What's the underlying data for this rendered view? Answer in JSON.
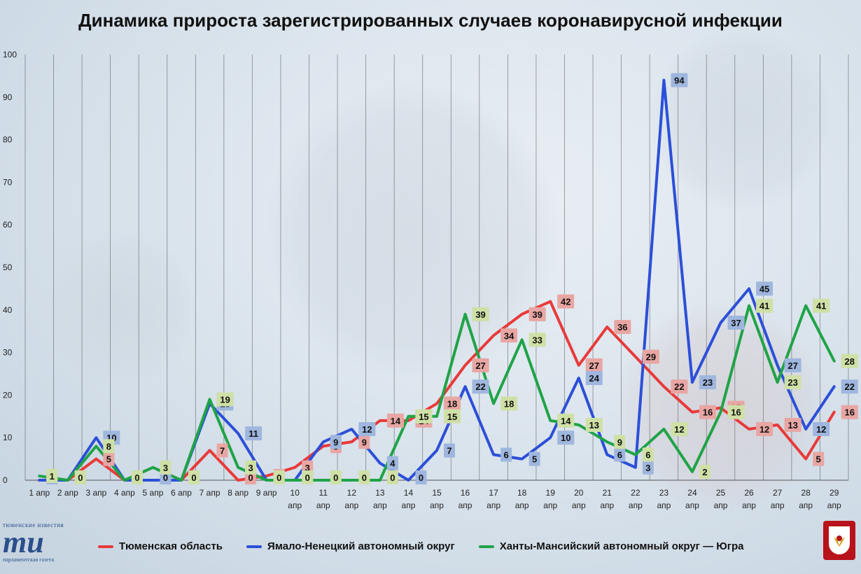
{
  "title": "Динамика прироста зарегистрированных случаев коронавирусной инфекции",
  "logo": {
    "top": "тюменские известия",
    "mark": "ти",
    "bottom": "парламентская газета"
  },
  "chart_data": {
    "type": "line",
    "ylim": [
      0,
      100
    ],
    "yticks": [
      0,
      10,
      20,
      30,
      40,
      50,
      60,
      70,
      80,
      90,
      100
    ],
    "grid": "vertical",
    "legend": "bottom",
    "categories": [
      [
        "1 апр"
      ],
      [
        "2 апр"
      ],
      [
        "3 апр"
      ],
      [
        "4 апр"
      ],
      [
        "5 апр"
      ],
      [
        "6 апр"
      ],
      [
        "7 апр"
      ],
      [
        "8 апр"
      ],
      [
        "9 апр"
      ],
      [
        "10",
        "апр"
      ],
      [
        "11",
        "апр"
      ],
      [
        "12",
        "апр"
      ],
      [
        "13",
        "апр"
      ],
      [
        "14",
        "апр"
      ],
      [
        "15",
        "апр"
      ],
      [
        "16",
        "апр"
      ],
      [
        "17",
        "апр"
      ],
      [
        "18",
        "апр"
      ],
      [
        "19",
        "апр"
      ],
      [
        "20",
        "апр"
      ],
      [
        "21",
        "апр"
      ],
      [
        "22",
        "апр"
      ],
      [
        "23",
        "апр"
      ],
      [
        "24",
        "апр"
      ],
      [
        "25",
        "апр"
      ],
      [
        "26",
        "апр"
      ],
      [
        "27",
        "апр"
      ],
      [
        "28",
        "апр"
      ],
      [
        "29",
        "апр"
      ]
    ],
    "series": [
      {
        "name": "Тюменская область",
        "color": "#e83a3a",
        "label_bg": "#e8a6a3",
        "values": [
          0,
          0,
          5,
          0,
          0,
          0,
          7,
          0,
          1,
          3,
          8,
          9,
          14,
          14,
          18,
          27,
          34,
          39,
          42,
          27,
          36,
          29,
          22,
          16,
          17,
          12,
          13,
          5,
          16
        ]
      },
      {
        "name": "Ямало-Ненецкий автономный округ",
        "color": "#2c4fd8",
        "label_bg": "#9fb6de",
        "values": [
          0,
          0,
          10,
          0,
          0,
          0,
          18,
          11,
          0,
          0,
          9,
          12,
          4,
          0,
          7,
          22,
          6,
          5,
          10,
          24,
          6,
          3,
          94,
          23,
          37,
          45,
          27,
          12,
          22
        ]
      },
      {
        "name": "Ханты-Мансийский автономный округ — Югра",
        "color": "#1fa347",
        "label_bg": "#cfe0a6",
        "values": [
          1,
          0,
          8,
          0,
          3,
          0,
          19,
          3,
          0,
          0,
          0,
          0,
          0,
          15,
          15,
          39,
          18,
          33,
          14,
          13,
          9,
          6,
          12,
          2,
          16,
          41,
          23,
          41,
          28
        ]
      }
    ]
  }
}
